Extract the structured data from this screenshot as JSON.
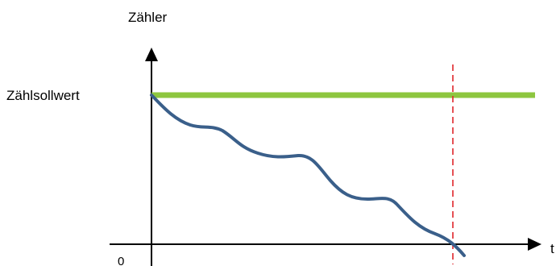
{
  "diagram": {
    "y_axis_label": "Zähler",
    "setpoint_label": "Zählsollwert",
    "origin_label": "0",
    "x_axis_label": "t"
  },
  "colors": {
    "setpoint_line": "#8DC63F",
    "counter_curve": "#3A5F8A",
    "marker_line": "#E0262B",
    "axes": "#000000"
  }
}
